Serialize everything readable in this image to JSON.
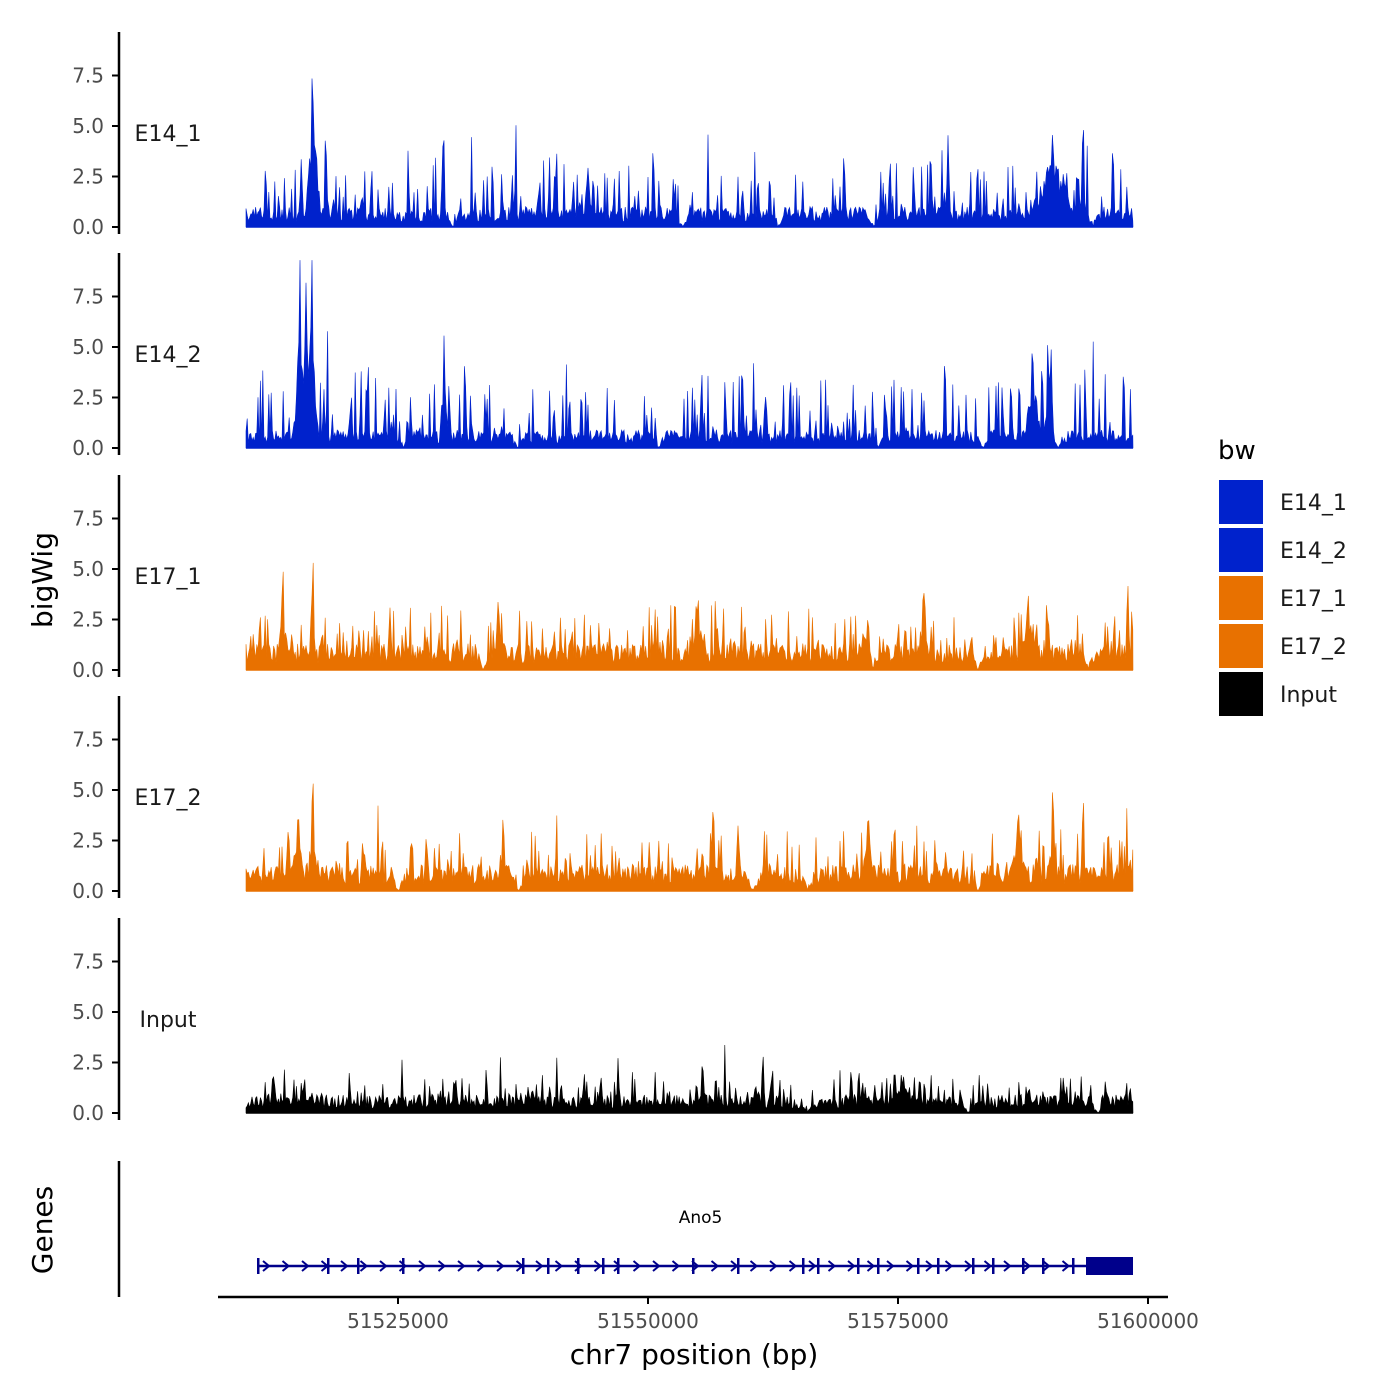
{
  "chart_data": {
    "type": "area",
    "chromosome": "chr7",
    "xlabel": "chr7 position (bp)",
    "ylabel_tracks": "bigWig",
    "ylabel_genes": "Genes",
    "xlim": [
      51507000,
      51602000
    ],
    "data_range": [
      51509800,
      51598500
    ],
    "ylim": [
      0,
      9.5
    ],
    "x_ticks": [
      51525000,
      51550000,
      51575000,
      51600000
    ],
    "x_tick_labels": [
      "51525000",
      "51550000",
      "51575000",
      "51600000"
    ],
    "y_ticks": [
      0,
      2.5,
      5,
      7.5
    ],
    "y_tick_labels": [
      "0.0",
      "2.5",
      "5.0",
      "7.5"
    ],
    "tracks": [
      {
        "name": "E14_1",
        "group": "E14",
        "color": "#0022cc",
        "base": 0.85,
        "noise": 1.1,
        "spikes": [
          [
            51516500,
            5.9,
            900
          ],
          [
            51529500,
            4.0,
            300
          ],
          [
            51580000,
            4.4,
            300
          ],
          [
            51590500,
            3.5,
            3000
          ],
          [
            51593500,
            4.0,
            300
          ],
          [
            51544000,
            2.8,
            600
          ]
        ],
        "gaps": [
          51530500,
          51553500,
          51563000,
          51572500,
          51594500
        ]
      },
      {
        "name": "E14_2",
        "group": "E14",
        "color": "#0022cc",
        "base": 0.75,
        "noise": 1.3,
        "spikes": [
          [
            51515200,
            9.3,
            600
          ],
          [
            51516400,
            8.7,
            500
          ],
          [
            51515800,
            6.5,
            1500
          ],
          [
            51529600,
            4.3,
            500
          ],
          [
            51590000,
            4.1,
            300
          ],
          [
            51588500,
            3.5,
            1200
          ]
        ],
        "gaps": [
          51525500,
          51537000,
          51551000,
          51573000,
          51583500,
          51591000
        ]
      },
      {
        "name": "E17_1",
        "group": "E17",
        "color": "#e87100",
        "base": 1.1,
        "noise": 0.9,
        "spikes": [
          [
            51513500,
            3.5,
            800
          ],
          [
            51516500,
            3.8,
            400
          ],
          [
            51535000,
            2.7,
            700
          ],
          [
            51555000,
            2.6,
            1200
          ],
          [
            51572000,
            2.8,
            1500
          ],
          [
            51577500,
            2.9,
            800
          ],
          [
            51588000,
            3.0,
            1200
          ],
          [
            51598000,
            3.3,
            300
          ]
        ],
        "gaps": [
          51533500,
          51572500,
          51583000,
          51594000
        ]
      },
      {
        "name": "E17_2",
        "group": "E17",
        "color": "#e87100",
        "base": 1.1,
        "noise": 0.9,
        "spikes": [
          [
            51515000,
            3.6,
            900
          ],
          [
            51516500,
            3.9,
            500
          ],
          [
            51535500,
            2.6,
            600
          ],
          [
            51556500,
            3.6,
            500
          ],
          [
            51572000,
            2.8,
            1200
          ],
          [
            51587000,
            3.1,
            1200
          ],
          [
            51590500,
            3.8,
            400
          ],
          [
            51593500,
            3.7,
            300
          ]
        ],
        "gaps": [
          51525000,
          51537000,
          51560500,
          51566000,
          51583000
        ]
      },
      {
        "name": "Input",
        "group": "Input",
        "color": "#000000",
        "base": 0.75,
        "noise": 0.6,
        "spikes": [
          [
            51512500,
            1.8,
            300
          ],
          [
            51547000,
            2.0,
            400
          ],
          [
            51561500,
            2.2,
            300
          ],
          [
            51555500,
            1.8,
            600
          ],
          [
            51575500,
            1.4,
            2500
          ]
        ],
        "gaps": [
          51566000,
          51582000,
          51595000
        ]
      }
    ],
    "legend": {
      "title": "bw",
      "position": "right",
      "entries": [
        {
          "label": "E14_1",
          "color": "#0022cc"
        },
        {
          "label": "E14_2",
          "color": "#0022cc"
        },
        {
          "label": "E17_1",
          "color": "#e87100"
        },
        {
          "label": "E17_2",
          "color": "#e87100"
        },
        {
          "label": "Input",
          "color": "#000000"
        }
      ]
    },
    "genes": [
      {
        "name": "Ano5",
        "strand": "+",
        "start": 51511000,
        "end": 51598500,
        "color": "#00008b",
        "exons": [
          51511000,
          51518000,
          51521000,
          51525500,
          51537500,
          51540000,
          51543000,
          51545500,
          51547000,
          51554500,
          51559000,
          51565500,
          51567000,
          51571000,
          51573000,
          51577000,
          51579000,
          51582500,
          51584500,
          51587500,
          51589500,
          51592500
        ],
        "utr_block": [
          51593800,
          51598500
        ]
      }
    ]
  }
}
